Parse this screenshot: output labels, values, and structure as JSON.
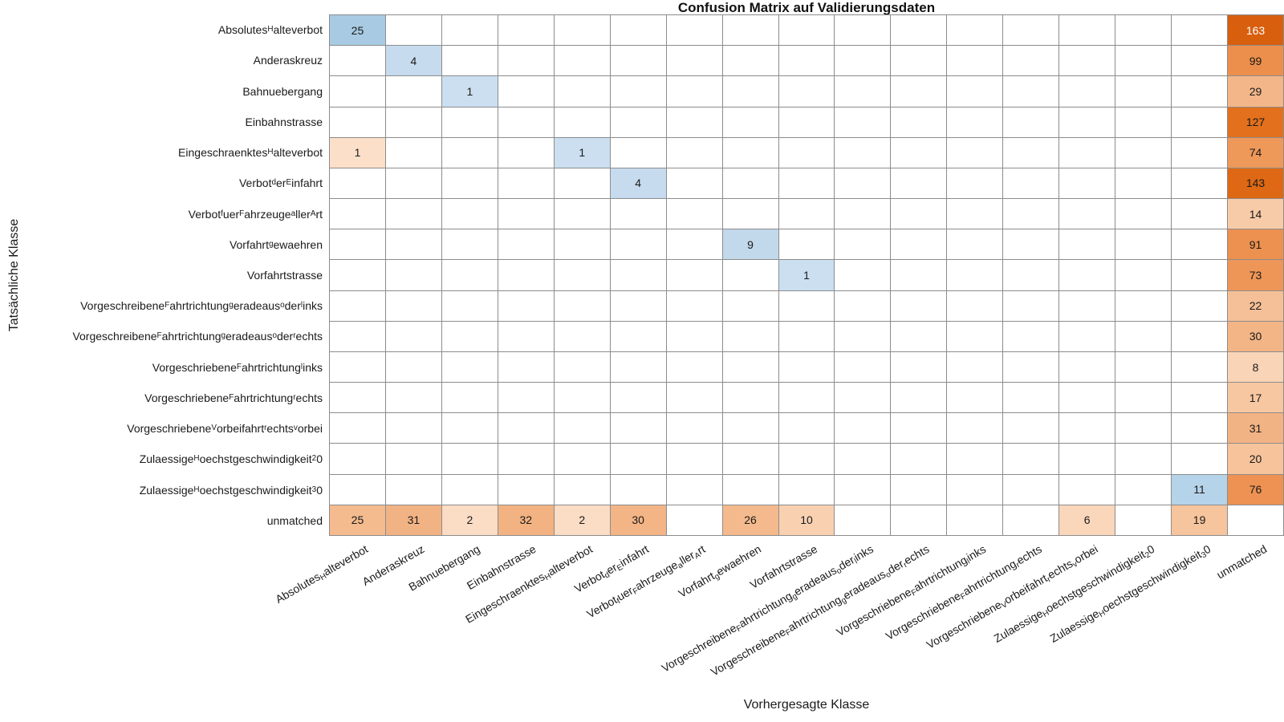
{
  "chart_data": {
    "type": "heatmap",
    "subtype": "confusion_matrix",
    "title": "Confusion Matrix auf Validierungsdaten",
    "xlabel": "Vorhergesagte Klasse",
    "ylabel": "Tatsächliche Klasse",
    "label_format": "underscore_makes_next_char_subscript",
    "grid": {
      "rows": 17,
      "cols": 17
    },
    "palette": {
      "diagonal": "Blues",
      "off_diagonal": "Oranges",
      "grid_line": "#8c8c8c",
      "background": "#ffffff",
      "text": "#1a1a1a"
    },
    "classes": [
      "Absolutes_Halteverbot",
      "Anderaskreuz",
      "Bahnuebergang",
      "Einbahnstrasse",
      "Eingeschraenktes_Halteverbot",
      "Verbot_der_Einfahrt",
      "Verbot_fuer_Fahrzeuge_aller_Art",
      "Vorfahrt_gewaehren",
      "Vorfahrtstrasse",
      "Vorgeschreibene_Fahrtrichtung_geradeaus_oder_links",
      "Vorgeschreibene_Fahrtrichtung_geradeaus_oder_rechts",
      "Vorgeschriebene_Fahrtrichtung_links",
      "Vorgeschriebene_Fahrtrichtung_rechts",
      "Vorgeschriebene_Vorbeifahrt_rechts_vorbei",
      "Zulaessige_Hoechstgeschwindigkeit_20",
      "Zulaessige_Hoechstgeschwindigkeit_30",
      "unmatched"
    ],
    "cells": [
      {
        "r": 1,
        "c": 1,
        "v": 25,
        "bg": "#a8cbe3"
      },
      {
        "r": 1,
        "c": 17,
        "v": 163,
        "bg": "#d85f0e",
        "fg": "#ffffff"
      },
      {
        "r": 2,
        "c": 2,
        "v": 4,
        "bg": "#c6dbee"
      },
      {
        "r": 2,
        "c": 17,
        "v": 99,
        "bg": "#ec8f4c"
      },
      {
        "r": 3,
        "c": 3,
        "v": 1,
        "bg": "#cbdff1"
      },
      {
        "r": 3,
        "c": 17,
        "v": 29,
        "bg": "#f3b688"
      },
      {
        "r": 4,
        "c": 17,
        "v": 127,
        "bg": "#e2701c"
      },
      {
        "r": 5,
        "c": 1,
        "v": 1,
        "bg": "#fcdfc9"
      },
      {
        "r": 5,
        "c": 5,
        "v": 1,
        "bg": "#cbdff1"
      },
      {
        "r": 5,
        "c": 17,
        "v": 74,
        "bg": "#ee9859"
      },
      {
        "r": 6,
        "c": 6,
        "v": 4,
        "bg": "#c6dbee"
      },
      {
        "r": 6,
        "c": 17,
        "v": 143,
        "bg": "#de6813"
      },
      {
        "r": 7,
        "c": 17,
        "v": 14,
        "bg": "#f8cba8"
      },
      {
        "r": 8,
        "c": 8,
        "v": 9,
        "bg": "#c2d8eb"
      },
      {
        "r": 8,
        "c": 17,
        "v": 91,
        "bg": "#ed9150"
      },
      {
        "r": 9,
        "c": 9,
        "v": 1,
        "bg": "#cbdff1"
      },
      {
        "r": 9,
        "c": 17,
        "v": 73,
        "bg": "#ee9657"
      },
      {
        "r": 10,
        "c": 17,
        "v": 22,
        "bg": "#f5c097"
      },
      {
        "r": 11,
        "c": 17,
        "v": 30,
        "bg": "#f3b586"
      },
      {
        "r": 12,
        "c": 17,
        "v": 8,
        "bg": "#fad4b6"
      },
      {
        "r": 13,
        "c": 17,
        "v": 17,
        "bg": "#f7c7a1"
      },
      {
        "r": 14,
        "c": 17,
        "v": 31,
        "bg": "#f2b384"
      },
      {
        "r": 15,
        "c": 17,
        "v": 20,
        "bg": "#f6c39b"
      },
      {
        "r": 16,
        "c": 16,
        "v": 11,
        "bg": "#b5d3e9"
      },
      {
        "r": 16,
        "c": 17,
        "v": 76,
        "bg": "#ed9252"
      },
      {
        "r": 17,
        "c": 1,
        "v": 25,
        "bg": "#f4bb8f"
      },
      {
        "r": 17,
        "c": 2,
        "v": 31,
        "bg": "#f2b384"
      },
      {
        "r": 17,
        "c": 3,
        "v": 2,
        "bg": "#fbdcc4"
      },
      {
        "r": 17,
        "c": 4,
        "v": 32,
        "bg": "#f2b282"
      },
      {
        "r": 17,
        "c": 5,
        "v": 2,
        "bg": "#fbdcc4"
      },
      {
        "r": 17,
        "c": 6,
        "v": 30,
        "bg": "#f3b586"
      },
      {
        "r": 17,
        "c": 8,
        "v": 26,
        "bg": "#f4ba8d"
      },
      {
        "r": 17,
        "c": 9,
        "v": 10,
        "bg": "#f9d1b1"
      },
      {
        "r": 17,
        "c": 14,
        "v": 6,
        "bg": "#fad6bb"
      },
      {
        "r": 17,
        "c": 16,
        "v": 19,
        "bg": "#f6c49d"
      }
    ]
  }
}
